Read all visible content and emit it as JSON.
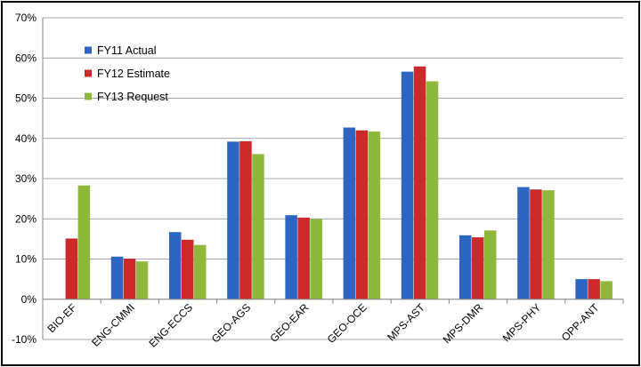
{
  "chart_data": {
    "type": "bar",
    "categories": [
      "BIO-EF",
      "ENG-CMMI",
      "ENG-ECCS",
      "GEO-AGS",
      "GEO-EAR",
      "GEO-OCE",
      "MPS-AST",
      "MPS-DMR",
      "MPS-PHY",
      "OPP-ANT"
    ],
    "series": [
      {
        "name": "FY11 Actual",
        "color": "#2E65C2",
        "values": [
          null,
          10.6,
          16.7,
          39.2,
          20.9,
          42.7,
          56.6,
          15.9,
          27.9,
          5.0
        ]
      },
      {
        "name": "FY12 Estimate",
        "color": "#CC2A2A",
        "values": [
          15.1,
          10.1,
          14.8,
          39.3,
          20.3,
          42.0,
          57.9,
          15.4,
          27.3,
          5.0
        ]
      },
      {
        "name": "FY13 Request",
        "color": "#8DB83C",
        "values": [
          28.3,
          9.4,
          13.5,
          36.1,
          19.9,
          41.7,
          54.2,
          17.1,
          27.1,
          4.5
        ]
      }
    ],
    "yticks": [
      "-10%",
      "0%",
      "10%",
      "20%",
      "30%",
      "40%",
      "50%",
      "60%",
      "70%"
    ],
    "ylim": [
      -10,
      70
    ],
    "ytick_step": 10,
    "grid": true,
    "legend_position": "top-left",
    "xlabel": "",
    "ylabel": "",
    "title": ""
  }
}
